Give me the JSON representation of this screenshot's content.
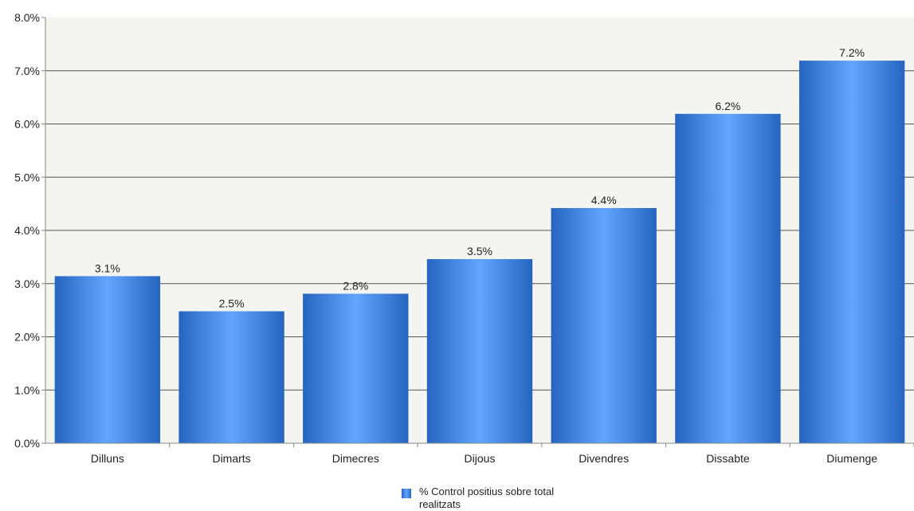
{
  "chart_data": {
    "type": "bar",
    "categories": [
      "Dilluns",
      "Dimarts",
      "Dimecres",
      "Dijous",
      "Divendres",
      "Dissabte",
      "Diumenge"
    ],
    "series": [
      {
        "name": "% Control positius sobre total realitzats",
        "values": [
          3.14,
          2.48,
          2.81,
          3.46,
          4.42,
          6.19,
          7.19
        ],
        "labels": [
          "3.1%",
          "2.5%",
          "2.8%",
          "3.5%",
          "4.4%",
          "6.2%",
          "7.2%"
        ]
      }
    ],
    "yticks": [
      "0.0%",
      "1.0%",
      "2.0%",
      "3.0%",
      "4.0%",
      "5.0%",
      "6.0%",
      "7.0%",
      "8.0%"
    ],
    "ylim": [
      0,
      8
    ],
    "title": "",
    "xlabel": "",
    "ylabel": "",
    "grid": true,
    "legend_position": "bottom-center",
    "colors": {
      "bar_edge": "#2565c0",
      "bar_center": "#62a6ff",
      "plot_bg": "#f4f4f0",
      "grid": "#555555"
    }
  }
}
